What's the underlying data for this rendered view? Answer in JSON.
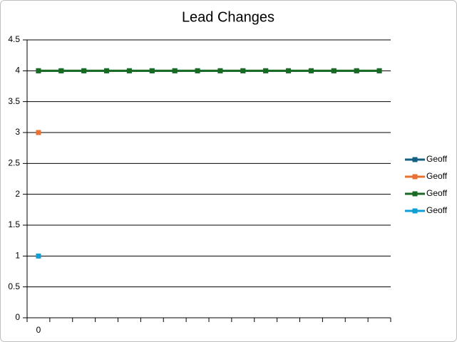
{
  "chart_data": {
    "type": "line",
    "title": "Lead Changes",
    "categories": [
      "0",
      null,
      null,
      null,
      null,
      null,
      null,
      null,
      null,
      null,
      null,
      null,
      null,
      null,
      null,
      null
    ],
    "series": [
      {
        "name": "Geoff",
        "color": "#156082",
        "values": [
          4,
          4,
          4,
          4,
          4,
          4,
          4,
          4,
          4,
          4,
          4,
          4,
          4,
          4,
          4,
          4
        ]
      },
      {
        "name": "Geoff",
        "color": "#e97132",
        "values": [
          3,
          null,
          null,
          null,
          null,
          null,
          null,
          null,
          null,
          null,
          null,
          null,
          null,
          null,
          null,
          null
        ]
      },
      {
        "name": "Geoff",
        "color": "#196b24",
        "values": [
          4,
          4,
          4,
          4,
          4,
          4,
          4,
          4,
          4,
          4,
          4,
          4,
          4,
          4,
          4,
          4
        ]
      },
      {
        "name": "Geoff",
        "color": "#0f9ed5",
        "values": [
          1,
          null,
          null,
          null,
          null,
          null,
          null,
          null,
          null,
          null,
          null,
          null,
          null,
          null,
          null,
          null
        ]
      }
    ],
    "ylim": [
      0,
      4.5
    ],
    "yticks": [
      0,
      0.5,
      1,
      1.5,
      2,
      2.5,
      3,
      3.5,
      4,
      4.5
    ],
    "grid": true,
    "legend": "right"
  }
}
